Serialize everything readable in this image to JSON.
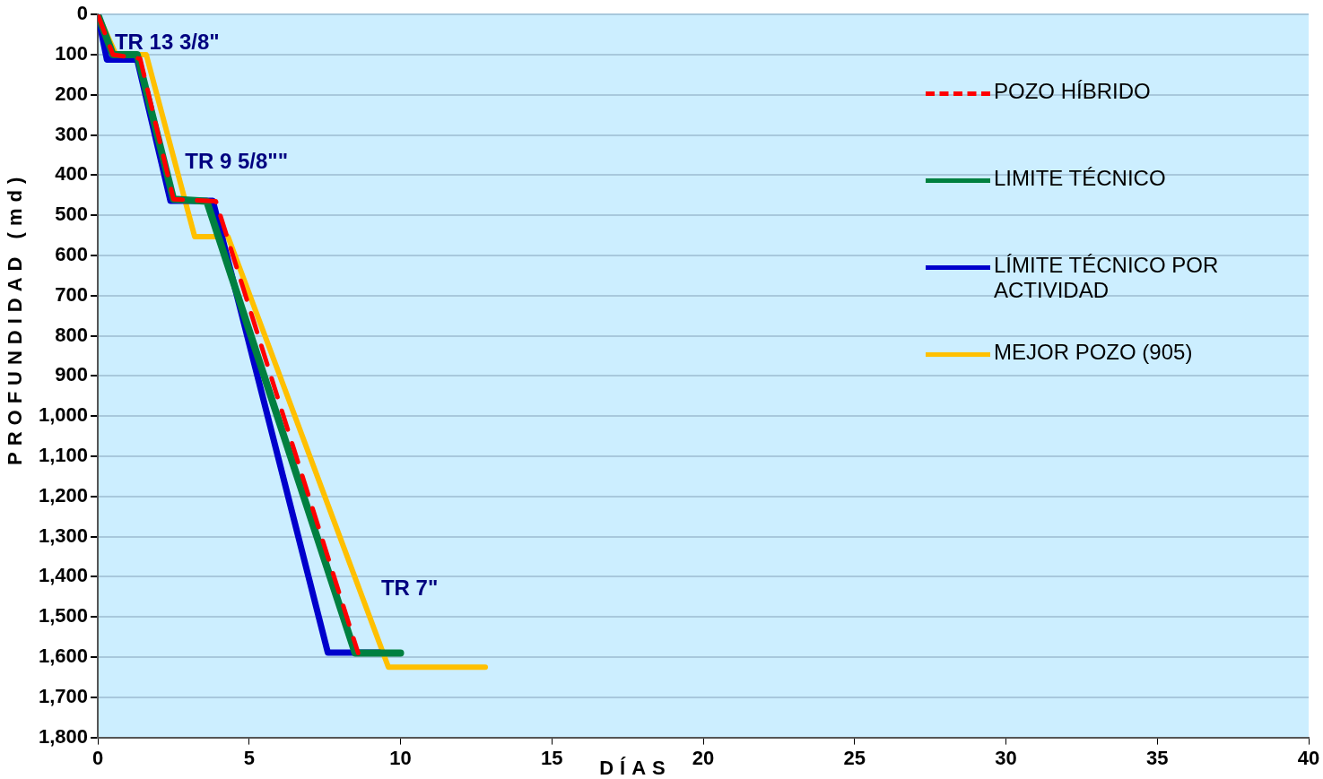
{
  "chart_data": {
    "type": "line",
    "xlabel": "DÍAS",
    "ylabel": "PROFUNDIDAD (md)",
    "xlim": [
      0,
      40
    ],
    "xticks": [
      0,
      5,
      10,
      15,
      20,
      25,
      30,
      35,
      40
    ],
    "ylim": [
      1800,
      0
    ],
    "yticks": [
      0,
      100,
      200,
      300,
      400,
      500,
      600,
      700,
      800,
      900,
      {
        "value": 1000,
        "label": "1,000"
      },
      {
        "value": 1100,
        "label": "1,100"
      },
      {
        "value": 1200,
        "label": "1,200"
      },
      {
        "value": 1300,
        "label": "1,300"
      },
      {
        "value": 1400,
        "label": "1,400"
      },
      {
        "value": 1500,
        "label": "1,500"
      },
      {
        "value": 1600,
        "label": "1,600"
      },
      {
        "value": 1700,
        "label": "1,700"
      },
      {
        "value": 1800,
        "label": "1,800"
      }
    ],
    "grid": "y",
    "legend": "right",
    "marker": "none",
    "series": [
      {
        "name": "POZO HÍBRIDO",
        "color": "#ff0000",
        "line_style": "dashed",
        "x": [
          0,
          0.5,
          1.4,
          2.5,
          3.9,
          8.6
        ],
        "values": [
          0,
          100,
          110,
          460,
          465,
          1590
        ]
      },
      {
        "name": "LIMITE TÉCNICO",
        "color": "#008040",
        "line_style": "solid",
        "x": [
          0,
          0.5,
          1.3,
          2.5,
          3.6,
          8.5,
          10
        ],
        "values": [
          0,
          100,
          100,
          460,
          465,
          1590,
          1590
        ]
      },
      {
        "name": "LÍMITE TÉCNICO POR ACTIVIDAD",
        "color": "#0000cc",
        "line_style": "solid",
        "x": [
          0,
          0.3,
          1.3,
          2.4,
          3.8,
          7.6,
          9.3
        ],
        "values": [
          0,
          112,
          112,
          464,
          464,
          1589,
          1589
        ]
      },
      {
        "name": "MEJOR POZO (905)",
        "color": "#ffc000",
        "line_style": "solid",
        "x": [
          0,
          0.6,
          1.6,
          3.2,
          4.3,
          9.6,
          12.8
        ],
        "values": [
          0,
          100,
          100,
          553,
          553,
          1625,
          1625
        ]
      }
    ],
    "annotations": [
      "TR 13 3/8\"",
      "TR 9 5/8\"\"",
      "TR 7\""
    ]
  }
}
